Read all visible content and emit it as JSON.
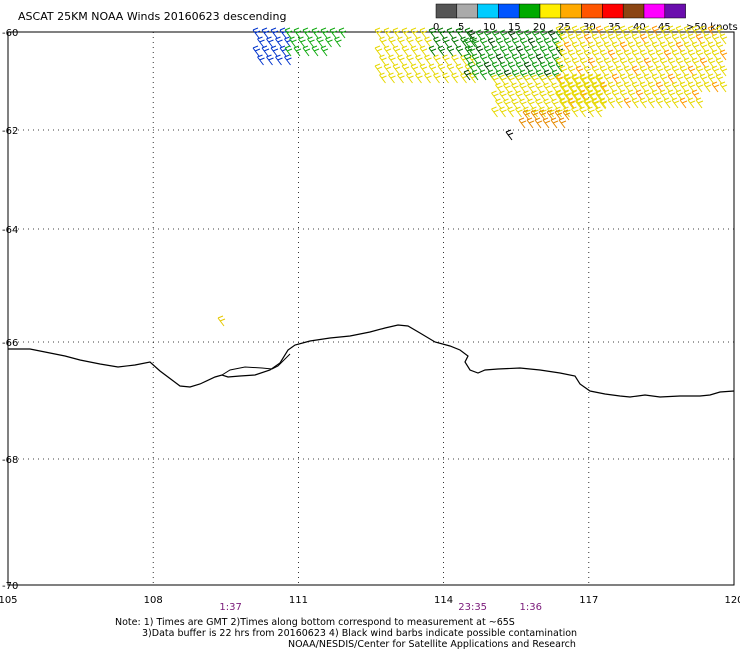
{
  "title": "ASCAT 25KM NOAA Winds 20160623 descending",
  "legend": {
    "ticks": [
      "0",
      "5",
      "10",
      "15",
      "20",
      "25",
      "30",
      "35",
      "40",
      "45",
      ">50 knots"
    ],
    "colors": [
      "#555555",
      "#aaaaaa",
      "#00ccff",
      "#0055ff",
      "#00aa00",
      "#ffee00",
      "#ffaa00",
      "#ff5500",
      "#ff0000",
      "#8b4513",
      "#ff00ff",
      "#6a0dad"
    ]
  },
  "lat_labels": [
    "-60",
    "-62",
    "-64",
    "-66",
    "-68",
    "-70"
  ],
  "lon_labels": [
    "105",
    "108",
    "111",
    "114",
    "117",
    "120"
  ],
  "times": [
    {
      "text": "1:37",
      "lon": 109.6
    },
    {
      "text": "23:35",
      "lon": 114.6
    },
    {
      "text": "1:36",
      "lon": 115.8
    }
  ],
  "notes": [
    "Note: 1) Times are GMT 2)Times along bottom correspond to measurement at ~65S",
    "3)Data buffer is 22 hrs from 20160623 4) Black wind barbs indicate possible contamination",
    "NOAA/NESDIS/Center for Satellite Applications and Research"
  ]
}
